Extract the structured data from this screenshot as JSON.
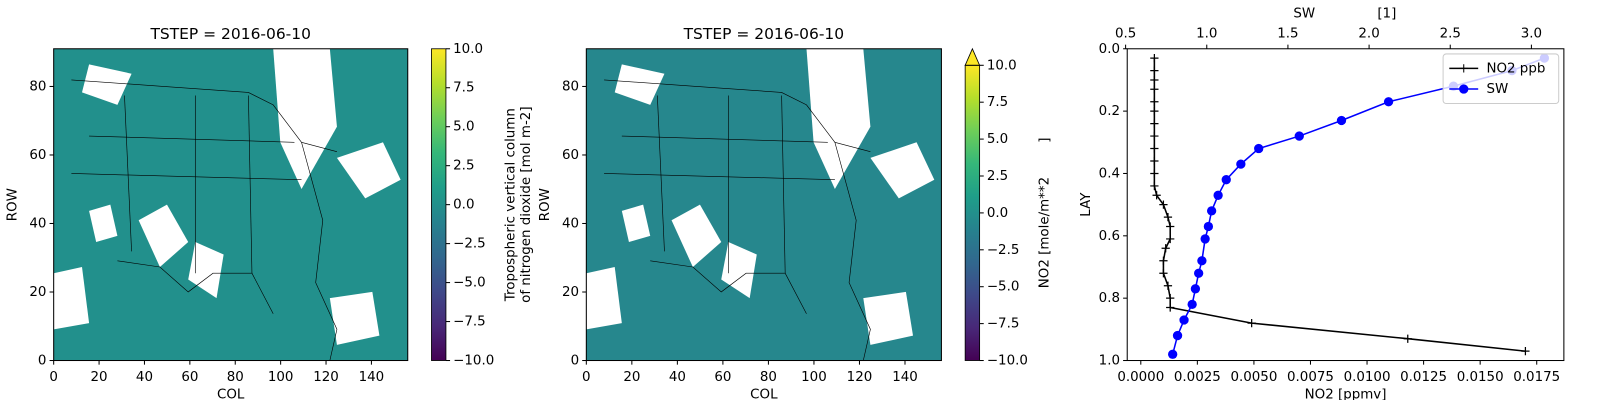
{
  "chart_data": [
    {
      "type": "heatmap",
      "title": "TSTEP = 2016-06-10",
      "xlabel": "COL",
      "ylabel": "ROW",
      "xlim": [
        0,
        156
      ],
      "ylim": [
        0,
        91
      ],
      "xticks": [
        0,
        20,
        40,
        60,
        80,
        100,
        120,
        140
      ],
      "yticks": [
        0,
        20,
        40,
        60,
        80
      ],
      "fill_color": "#22908c",
      "colormap": "viridis",
      "extend": "neither",
      "clim": [
        -10,
        10
      ],
      "cticks": [
        {
          "value": -10,
          "label": "−10.0"
        },
        {
          "value": -7.5,
          "label": "−7.5"
        },
        {
          "value": -5,
          "label": "−5.0"
        },
        {
          "value": -2.5,
          "label": "−2.5"
        },
        {
          "value": 0,
          "label": "0.0"
        },
        {
          "value": 2.5,
          "label": "2.5"
        },
        {
          "value": 5,
          "label": "5.0"
        },
        {
          "value": 7.5,
          "label": "7.5"
        },
        {
          "value": 10,
          "label": "10.0"
        }
      ],
      "clabel": [
        "Tropospheric vertical column",
        "of nitrogen dioxide [mol m-2]"
      ]
    },
    {
      "type": "heatmap",
      "title": "TSTEP = 2016-06-10",
      "xlabel": "COL",
      "ylabel": "ROW",
      "xlim": [
        0,
        156
      ],
      "ylim": [
        0,
        91
      ],
      "xticks": [
        0,
        20,
        40,
        60,
        80,
        100,
        120,
        140
      ],
      "yticks": [
        0,
        20,
        40,
        60,
        80
      ],
      "fill_color": "#26878d",
      "colormap": "viridis",
      "extend": "max",
      "clim": [
        -10,
        10
      ],
      "cticks": [
        {
          "value": -10,
          "label": "−10.0"
        },
        {
          "value": -7.5,
          "label": "−7.5"
        },
        {
          "value": -5,
          "label": "−5.0"
        },
        {
          "value": -2.5,
          "label": "−2.5"
        },
        {
          "value": 0,
          "label": "0.0"
        },
        {
          "value": 2.5,
          "label": "2.5"
        },
        {
          "value": 5,
          "label": "5.0"
        },
        {
          "value": 7.5,
          "label": "7.5"
        },
        {
          "value": 10,
          "label": "10.0"
        }
      ],
      "clabel": [
        "NO2 [mole/m**2        ]"
      ]
    },
    {
      "type": "line",
      "xlabel": "NO2 [ppmv]",
      "ylabel": "LAY",
      "x2label": "SW",
      "x2unit": "[1]",
      "xlim": [
        -0.0006,
        0.0187
      ],
      "ylim": [
        1,
        0
      ],
      "x2lim": [
        0.51,
        3.2
      ],
      "xticks": [
        {
          "value": 0,
          "label": "0.0000"
        },
        {
          "value": 0.0025,
          "label": "0.0025"
        },
        {
          "value": 0.005,
          "label": "0.0050"
        },
        {
          "value": 0.0075,
          "label": "0.0075"
        },
        {
          "value": 0.01,
          "label": "0.0100"
        },
        {
          "value": 0.0125,
          "label": "0.0125"
        },
        {
          "value": 0.015,
          "label": "0.0150"
        },
        {
          "value": 0.0175,
          "label": "0.0175"
        }
      ],
      "yticks": [
        {
          "value": 0,
          "label": "0.0"
        },
        0.2,
        0.4,
        0.6,
        0.8,
        {
          "value": 1,
          "label": "1.0"
        }
      ],
      "x2ticks": [
        0.5,
        {
          "value": 1,
          "label": "1.0"
        },
        1.5,
        {
          "value": 2,
          "label": "2.0"
        },
        2.5,
        {
          "value": 3,
          "label": "3.0"
        }
      ],
      "legend": "upper right",
      "series": [
        {
          "name": "NO2 ppb",
          "color": "#000000",
          "marker": "+",
          "x": [
            0.0006,
            0.0006,
            0.0006,
            0.0006,
            0.0006,
            0.0006,
            0.0006,
            0.0006,
            0.0006,
            0.0006,
            0.0006,
            0.0006,
            0.0007,
            0.001,
            0.0012,
            0.0013,
            0.0013,
            0.0011,
            0.001,
            0.001,
            0.0012,
            0.0013,
            0.0013,
            0.0049,
            0.0118,
            0.017
          ],
          "values": [
            0.03,
            0.07,
            0.1,
            0.13,
            0.17,
            0.2,
            0.24,
            0.28,
            0.32,
            0.36,
            0.4,
            0.44,
            0.47,
            0.5,
            0.54,
            0.57,
            0.61,
            0.64,
            0.68,
            0.72,
            0.76,
            0.8,
            0.83,
            0.88,
            0.93,
            0.97
          ]
        },
        {
          "name": "SW",
          "color": "#0000ff",
          "marker": "o",
          "axis": "x2",
          "x": [
            3.08,
            2.88,
            2.52,
            2.12,
            1.83,
            1.57,
            1.32,
            1.21,
            1.12,
            1.07,
            1.03,
            1.01,
            0.99,
            0.97,
            0.95,
            0.93,
            0.91,
            0.86,
            0.82,
            0.79
          ],
          "values": [
            0.03,
            0.07,
            0.12,
            0.17,
            0.23,
            0.28,
            0.32,
            0.37,
            0.42,
            0.47,
            0.52,
            0.57,
            0.61,
            0.68,
            0.72,
            0.77,
            0.82,
            0.87,
            0.92,
            0.98
          ]
        }
      ]
    }
  ]
}
